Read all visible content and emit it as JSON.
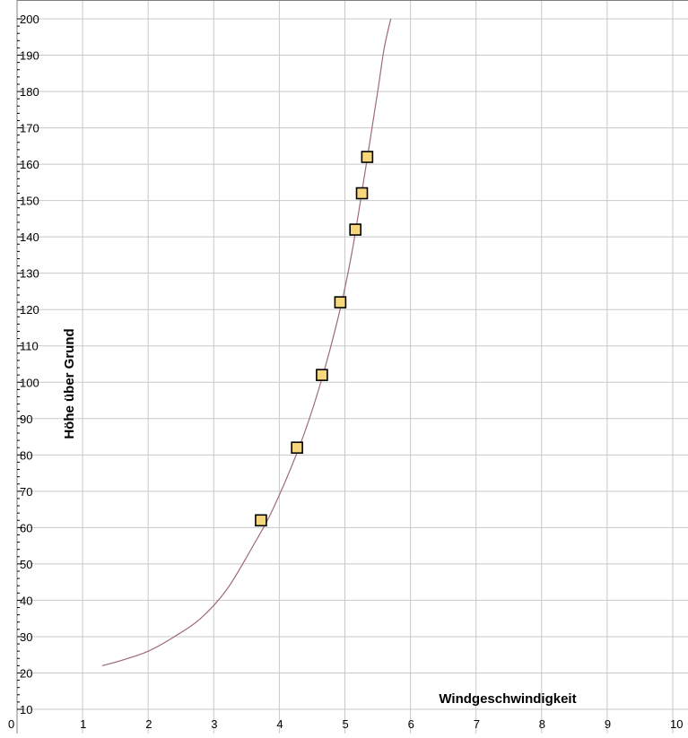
{
  "chart_data": {
    "type": "scatter",
    "title": "",
    "xlabel": "Windgeschwindigkeit",
    "ylabel": "Höhe über Grund",
    "xlim": [
      0,
      10
    ],
    "ylim": [
      10,
      200
    ],
    "x_ticks": [
      "0",
      "1",
      "2",
      "3",
      "4",
      "5",
      "6",
      "7",
      "8",
      "9",
      "10"
    ],
    "y_ticks": [
      "10",
      "20",
      "30",
      "40",
      "50",
      "60",
      "70",
      "80",
      "90",
      "100",
      "110",
      "120",
      "130",
      "140",
      "150",
      "160",
      "170",
      "180",
      "190",
      "200"
    ],
    "grid": true,
    "series": [
      {
        "kind": "points",
        "marker": "square",
        "x": [
          3.72,
          4.27,
          4.65,
          4.93,
          5.16,
          5.26,
          5.34
        ],
        "y": [
          62,
          82,
          102,
          122,
          142,
          152,
          162
        ]
      },
      {
        "kind": "fitted-curve",
        "x": [
          1.3,
          1.6,
          2.0,
          2.4,
          2.8,
          3.2,
          3.6,
          3.9,
          4.3,
          4.6,
          4.9,
          5.1,
          5.3,
          5.5,
          5.6,
          5.7
        ],
        "y": [
          22,
          23.5,
          26,
          30,
          35,
          43,
          55,
          65,
          82,
          98,
          118,
          135,
          157,
          180,
          192,
          200
        ]
      }
    ],
    "colors": {
      "marker_fill": "#f7d77c",
      "marker_stroke": "#000000",
      "curve": "#9e6a78",
      "grid": "#c8c8c8",
      "frame": "#808080"
    }
  }
}
